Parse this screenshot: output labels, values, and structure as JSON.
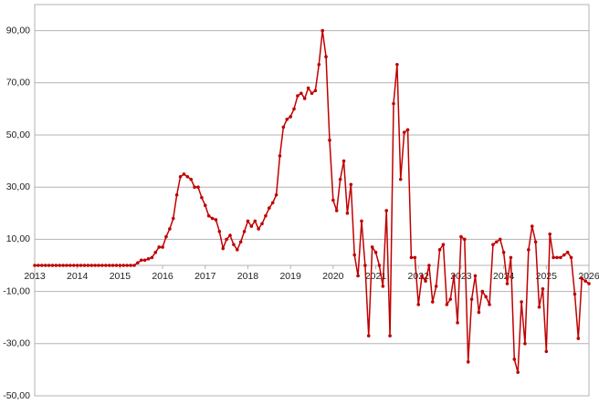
{
  "chart_data": {
    "type": "line",
    "x": [
      2013,
      2013.083,
      2013.167,
      2013.25,
      2013.333,
      2013.417,
      2013.5,
      2013.583,
      2013.667,
      2013.75,
      2013.833,
      2013.917,
      2014,
      2014.083,
      2014.167,
      2014.25,
      2014.333,
      2014.417,
      2014.5,
      2014.583,
      2014.667,
      2014.75,
      2014.833,
      2014.917,
      2015,
      2015.083,
      2015.167,
      2015.25,
      2015.333,
      2015.417,
      2015.5,
      2015.583,
      2015.667,
      2015.75,
      2015.833,
      2015.917,
      2016,
      2016.083,
      2016.167,
      2016.25,
      2016.333,
      2016.417,
      2016.5,
      2016.583,
      2016.667,
      2016.75,
      2016.833,
      2016.917,
      2017,
      2017.083,
      2017.167,
      2017.25,
      2017.333,
      2017.417,
      2017.5,
      2017.583,
      2017.667,
      2017.75,
      2017.833,
      2017.917,
      2018,
      2018.083,
      2018.167,
      2018.25,
      2018.333,
      2018.417,
      2018.5,
      2018.583,
      2018.667,
      2018.75,
      2018.833,
      2018.917,
      2019,
      2019.083,
      2019.167,
      2019.25,
      2019.333,
      2019.417,
      2019.5,
      2019.583,
      2019.667,
      2019.75,
      2019.833,
      2019.917,
      2020,
      2020.083,
      2020.167,
      2020.25,
      2020.333,
      2020.417,
      2020.5,
      2020.583,
      2020.667,
      2020.75,
      2020.833,
      2020.917,
      2021,
      2021.083,
      2021.167,
      2021.25,
      2021.333,
      2021.417,
      2021.5,
      2021.583,
      2021.667,
      2021.75,
      2021.833,
      2021.917,
      2022,
      2022.083,
      2022.167,
      2022.25,
      2022.333,
      2022.417,
      2022.5,
      2022.583,
      2022.667,
      2022.75,
      2022.833,
      2022.917,
      2023,
      2023.083,
      2023.167,
      2023.25,
      2023.333,
      2023.417,
      2023.5,
      2023.583,
      2023.667,
      2023.75,
      2023.833,
      2023.917,
      2024,
      2024.083,
      2024.167,
      2024.25,
      2024.333,
      2024.417,
      2024.5,
      2024.583,
      2024.667,
      2024.75,
      2024.833,
      2024.917,
      2025,
      2025.083,
      2025.167,
      2025.25,
      2025.333,
      2025.417,
      2025.5,
      2025.583,
      2025.667,
      2025.75,
      2025.833,
      2025.917,
      2026
    ],
    "series": [
      {
        "color": "#c00000",
        "values": [
          0,
          0,
          0,
          0,
          0,
          0,
          0,
          0,
          0,
          0,
          0,
          0,
          0,
          0,
          0,
          0,
          0,
          0,
          0,
          0,
          0,
          0,
          0,
          0,
          0,
          0,
          0,
          0,
          0,
          1,
          2,
          2,
          2.5,
          3,
          5,
          7,
          7,
          11,
          14,
          18,
          27,
          34,
          35,
          34,
          33,
          30,
          30,
          26,
          23,
          19,
          18,
          17.5,
          13,
          6.5,
          10,
          11.5,
          8,
          6,
          9,
          13,
          17,
          15,
          17,
          14,
          16,
          19,
          22,
          24,
          27,
          42,
          53,
          56,
          57,
          60,
          65,
          66,
          64,
          68,
          66,
          67,
          77,
          90,
          80,
          48,
          25,
          21,
          33,
          40,
          20,
          31,
          4,
          -4,
          17,
          0,
          -27,
          7,
          5,
          0,
          -8,
          21,
          -27,
          62,
          77,
          33,
          51,
          52,
          3,
          3,
          -15,
          -4,
          -6,
          0,
          -14,
          -8,
          6,
          8,
          -15,
          -13,
          -4,
          -22,
          11,
          10,
          -37,
          -13,
          -4,
          -18,
          -10,
          -12,
          -15,
          8,
          9,
          10,
          5,
          -7,
          3,
          -36,
          -41,
          -14,
          -30,
          6,
          15,
          9,
          -16,
          -9,
          -33,
          12,
          3,
          3,
          3,
          4,
          5,
          3,
          -11,
          -28,
          -5,
          -6,
          -7
        ]
      }
    ],
    "xlim": [
      2013,
      2026
    ],
    "xticks": [
      2013,
      2014,
      2015,
      2016,
      2017,
      2018,
      2019,
      2020,
      2021,
      2022,
      2023,
      2024,
      2025,
      2026
    ],
    "ylim": [
      -50,
      100
    ],
    "yticks": [
      {
        "value": -50,
        "label": "-50,00"
      },
      {
        "value": -30,
        "label": "-30,00"
      },
      {
        "value": -10,
        "label": "-10,00"
      },
      {
        "value": 10,
        "label": "10,00"
      },
      {
        "value": 30,
        "label": "30,00"
      },
      {
        "value": 50,
        "label": "50,00"
      },
      {
        "value": 70,
        "label": "70,00"
      },
      {
        "value": 90,
        "label": "90,00"
      }
    ],
    "grid": true
  }
}
